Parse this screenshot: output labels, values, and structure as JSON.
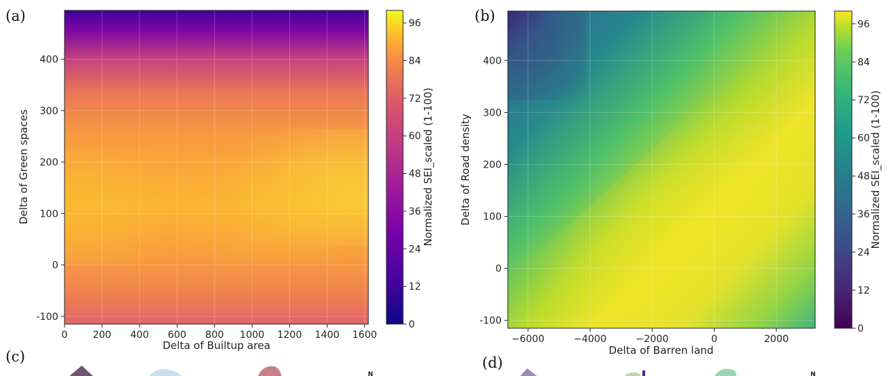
{
  "panels": [
    {
      "letter": "(a)"
    },
    {
      "letter": "(b)"
    },
    {
      "letter": "(c)"
    },
    {
      "letter": "(d)"
    }
  ],
  "north_label": "N",
  "chart_data": [
    {
      "type": "heatmap",
      "panel": "(a)",
      "colormap": "plasma",
      "xlabel": "Delta of Builtup area",
      "ylabel": "Delta of Green spaces",
      "xlim": [
        0,
        1620
      ],
      "ylim": [
        -115,
        495
      ],
      "xticks": [
        "0",
        "200",
        "400",
        "600",
        "800",
        "1000",
        "1200",
        "1400",
        "1600"
      ],
      "yticks": [
        "-100",
        "0",
        "100",
        "200",
        "300",
        "400"
      ],
      "colorbar": {
        "label": "Normalized SEI_scaled (1-100)",
        "range": [
          0,
          100
        ],
        "ticks": [
          "0",
          "12",
          "24",
          "36",
          "48",
          "60",
          "72",
          "84",
          "96"
        ]
      },
      "grid": true,
      "features": [
        {
          "x": 1550,
          "y": 150,
          "value": 97,
          "note": "maximum"
        },
        {
          "x": 0,
          "y": 110,
          "value": 90
        },
        {
          "x": 600,
          "y": 490,
          "value": 5,
          "note": "minimum"
        },
        {
          "x": 800,
          "y": -110,
          "value": 60
        }
      ]
    },
    {
      "type": "heatmap",
      "panel": "(b)",
      "colormap": "viridis",
      "xlabel": "Delta of Barren land",
      "ylabel": "Delta of Road density",
      "xlim": [
        -6650,
        3250
      ],
      "ylim": [
        -115,
        495
      ],
      "xticks": [
        "−6000",
        "−4000",
        "−2000",
        "0",
        "2000"
      ],
      "yticks": [
        "-100",
        "0",
        "100",
        "200",
        "300",
        "400"
      ],
      "colorbar": {
        "label": "Normalized SEI_scaled (1-100)",
        "range": [
          0,
          100
        ],
        "ticks": [
          "0",
          "12",
          "24",
          "36",
          "48",
          "60",
          "72",
          "84",
          "96"
        ]
      },
      "grid": true,
      "features": [
        {
          "x": -1500,
          "y": 100,
          "value": 99,
          "note": "maximum ridge"
        },
        {
          "x": -6500,
          "y": 480,
          "value": 22,
          "note": "minimum"
        },
        {
          "x": 3200,
          "y": -100,
          "value": 62
        }
      ]
    }
  ]
}
